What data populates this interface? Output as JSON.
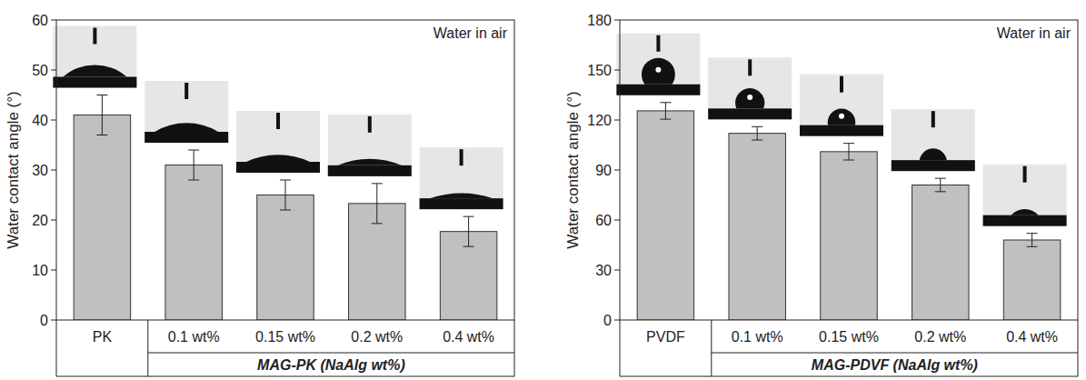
{
  "chart_data": [
    {
      "type": "bar",
      "ylabel": "Water contact angle (°)",
      "annotation": "Water in air",
      "xlabel": "MAG-PK (NaAlg wt%)",
      "categories": [
        "PK",
        "0.1 wt%",
        "0.15 wt%",
        "0.2 wt%",
        "0.4 wt%"
      ],
      "values": [
        41,
        31,
        25,
        23.3,
        17.7
      ],
      "errors": [
        4,
        3,
        3,
        4,
        3
      ],
      "color": "#c0c0c0",
      "ylim": [
        0,
        60
      ],
      "yticks": [
        0,
        10,
        20,
        30,
        40,
        50,
        60
      ]
    },
    {
      "type": "bar",
      "ylabel": "Water contact angle (°)",
      "annotation": "Water in air",
      "xlabel": "MAG-PDVF (NaAlg wt%)",
      "categories": [
        "PVDF",
        "0.1 wt%",
        "0.15 wt%",
        "0.2 wt%",
        "0.4 wt%"
      ],
      "values": [
        125.5,
        112,
        101,
        81,
        48
      ],
      "errors": [
        5,
        4,
        5,
        4,
        4
      ],
      "color": "#c0c0c0",
      "ylim": [
        0,
        180
      ],
      "yticks": [
        0,
        30,
        60,
        90,
        120,
        150,
        180
      ]
    }
  ]
}
